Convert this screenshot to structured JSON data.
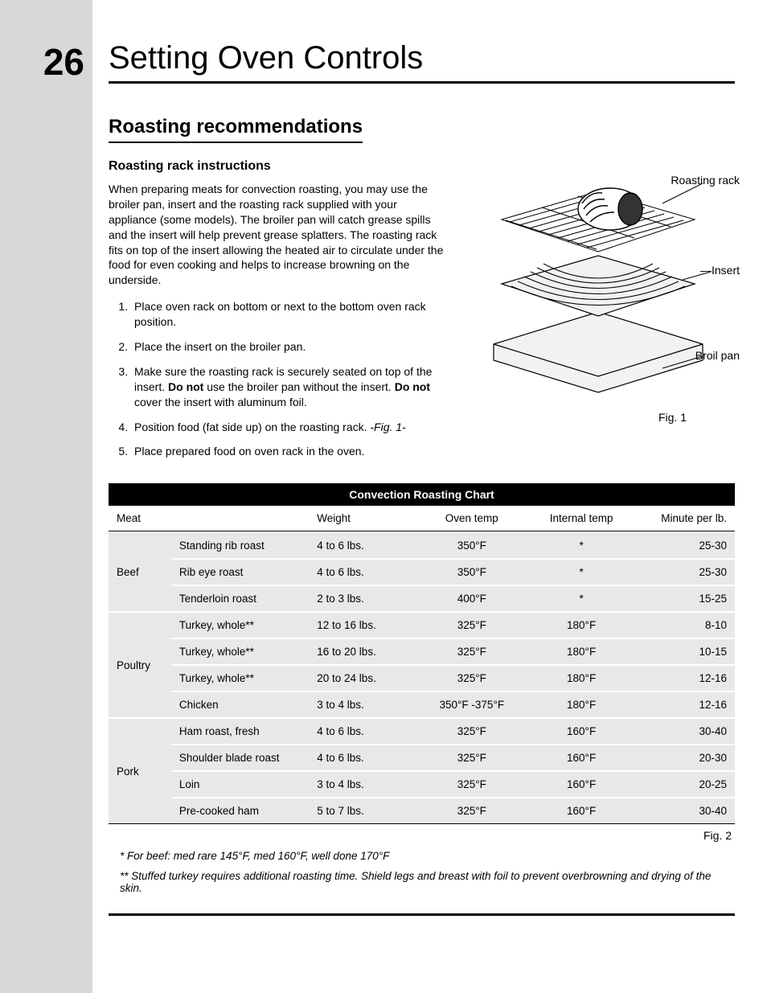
{
  "page_number": "26",
  "title": "Setting Oven Controls",
  "section_heading": "Roasting recommendations",
  "subsection_heading": "Roasting rack instructions",
  "intro_paragraph": "When preparing meats for convection roasting, you may use the broiler pan, insert and the roasting rack supplied with your appliance (some models). The broiler pan will catch grease spills and the insert will help prevent grease splatters. The roasting rack fits on top of the insert allowing the heated air to circulate under the food for even cooking and helps to increase browning on the underside.",
  "steps": [
    "Place oven rack on bottom or next to the bottom oven rack position.",
    "Place the insert on the broiler pan.",
    "Make sure the roasting rack is securely seated on top of the insert. <b>Do not</b> use the broiler pan without the insert. <b>Do not</b> cover the insert with aluminum foil.",
    "Position food (fat side up) on the roasting rack. <i>-Fig. 1-</i>",
    "Place prepared food on oven rack in the oven."
  ],
  "figure1": {
    "labels": {
      "rack": "Roasting rack",
      "insert": "Insert",
      "pan": "Broil pan"
    },
    "caption": "Fig. 1",
    "stroke": "#000000",
    "fill_light": "#f2f2f2",
    "fill_dark": "#333333"
  },
  "chart": {
    "title": "Convection Roasting Chart",
    "header_bg": "#000000",
    "header_color": "#ffffff",
    "row_bg": "#e8e8e8",
    "columns": [
      "Meat",
      "",
      "Weight",
      "Oven temp",
      "Internal temp",
      "Minute per lb."
    ],
    "groups": [
      {
        "category": "Beef",
        "rows": [
          [
            "Standing rib roast",
            "4 to 6 lbs.",
            "350°F",
            "*",
            "25-30"
          ],
          [
            "Rib eye roast",
            "4 to 6 lbs.",
            "350°F",
            "*",
            "25-30"
          ],
          [
            "Tenderloin roast",
            "2 to 3 lbs.",
            "400°F",
            "*",
            "15-25"
          ]
        ]
      },
      {
        "category": "Poultry",
        "rows": [
          [
            "Turkey, whole**",
            "12 to 16 lbs.",
            "325°F",
            "180°F",
            "8-10"
          ],
          [
            "Turkey, whole**",
            "16 to 20 lbs.",
            "325°F",
            "180°F",
            "10-15"
          ],
          [
            "Turkey, whole**",
            "20 to 24 lbs.",
            "325°F",
            "180°F",
            "12-16"
          ],
          [
            "Chicken",
            "3 to 4 lbs.",
            "350°F -375°F",
            "180°F",
            "12-16"
          ]
        ]
      },
      {
        "category": "Pork",
        "rows": [
          [
            "Ham roast, fresh",
            "4 to 6 lbs.",
            "325°F",
            "160°F",
            "30-40"
          ],
          [
            "Shoulder blade roast",
            "4 to 6 lbs.",
            "325°F",
            "160°F",
            "20-30"
          ],
          [
            "Loin",
            "3 to 4 lbs.",
            "325°F",
            "160°F",
            "20-25"
          ],
          [
            "Pre-cooked ham",
            "5 to 7 lbs.",
            "325°F",
            "160°F",
            "30-40"
          ]
        ]
      }
    ],
    "figure2_caption": "Fig. 2"
  },
  "footnotes": [
    "* For beef: med rare 145°F, med 160°F, well done 170°F",
    "** Stuffed turkey requires additional roasting time. Shield legs and breast with foil to prevent overbrowning and drying of the skin."
  ]
}
